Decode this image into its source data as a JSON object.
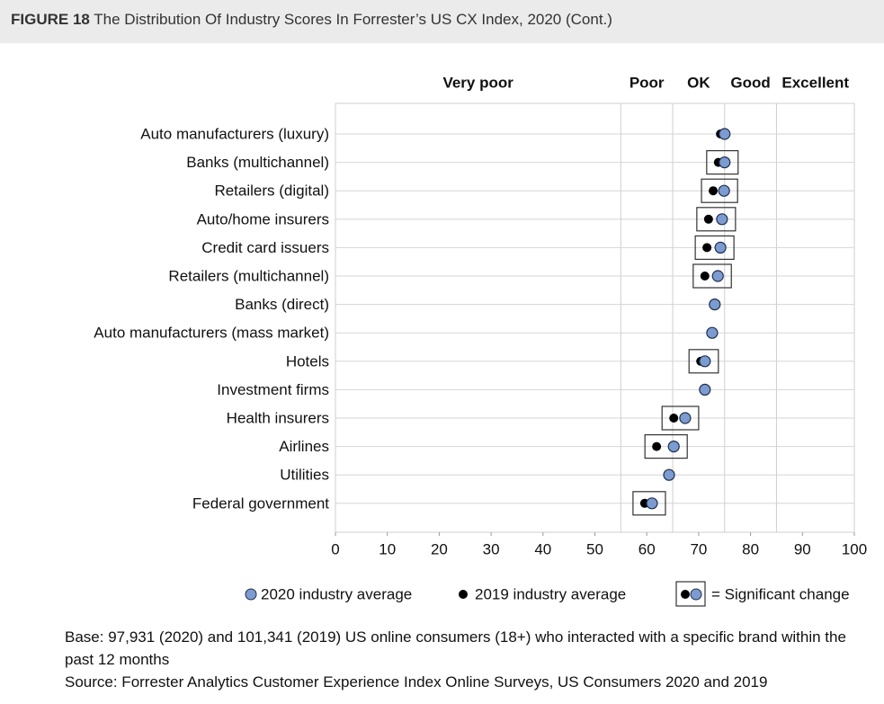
{
  "header": {
    "figure_label": "FIGURE 18",
    "title": "The Distribution Of Industry Scores In Forrester’s US CX Index, 2020 (Cont.)"
  },
  "chart_data": {
    "type": "dot",
    "categories": [
      "Auto manufacturers (luxury)",
      "Banks (multichannel)",
      "Retailers (digital)",
      "Auto/home insurers",
      "Credit card issuers",
      "Retailers (multichannel)",
      "Banks (direct)",
      "Auto manufacturers (mass market)",
      "Hotels",
      "Investment firms",
      "Health insurers",
      "Airlines",
      "Utilities",
      "Federal government"
    ],
    "series": [
      {
        "name": "2020 industry average",
        "color": "#7b9bd1",
        "values": [
          75.0,
          75.0,
          74.9,
          74.5,
          74.2,
          73.7,
          73.1,
          72.6,
          71.2,
          71.2,
          67.4,
          65.2,
          64.3,
          61.0
        ]
      },
      {
        "name": "2019 industry average",
        "color": "#000000",
        "values": [
          74.2,
          73.8,
          72.8,
          71.9,
          71.6,
          71.2,
          73.0,
          72.4,
          70.4,
          71.1,
          65.2,
          61.9,
          64.1,
          59.6
        ]
      }
    ],
    "significant": [
      false,
      true,
      true,
      true,
      true,
      true,
      false,
      false,
      true,
      false,
      true,
      true,
      false,
      true
    ],
    "significant_label": "= Significant change",
    "zones": [
      {
        "label": "Very poor",
        "from": 0,
        "to": 55
      },
      {
        "label": "Poor",
        "from": 55,
        "to": 65
      },
      {
        "label": "OK",
        "from": 65,
        "to": 75
      },
      {
        "label": "Good",
        "from": 75,
        "to": 85
      },
      {
        "label": "Excellent",
        "from": 85,
        "to": 100
      }
    ],
    "xlim": [
      0,
      100
    ],
    "xticks": [
      0,
      10,
      20,
      30,
      40,
      50,
      60,
      70,
      80,
      90,
      100
    ],
    "grid": true
  },
  "footnotes": {
    "base": "Base: 97,931 (2020) and 101,341 (2019) US online consumers (18+) who interacted with a specific brand within the past 12 months",
    "source": "Source: Forrester Analytics Customer Experience Index Online Surveys, US Consumers 2020 and 2019"
  }
}
